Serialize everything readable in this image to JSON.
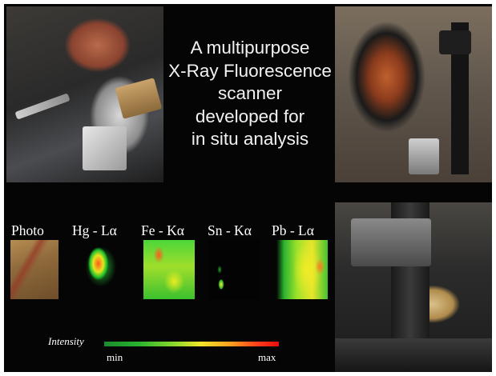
{
  "title_lines": [
    "A multipurpose",
    "X-Ray Fluorescence",
    "scanner",
    "developed for",
    "in situ analysis"
  ],
  "maps": [
    {
      "label": "Photo"
    },
    {
      "label": "Hg - Lα"
    },
    {
      "label": "Fe - Kα"
    },
    {
      "label": "Sn - Kα"
    },
    {
      "label": "Pb - Lα"
    }
  ],
  "legend": {
    "label": "Intensity",
    "min": "min",
    "max": "max",
    "colors": [
      "#1b8a2e",
      "#8bd82c",
      "#f0e62a",
      "#ffa21e",
      "#e80d0d"
    ]
  }
}
